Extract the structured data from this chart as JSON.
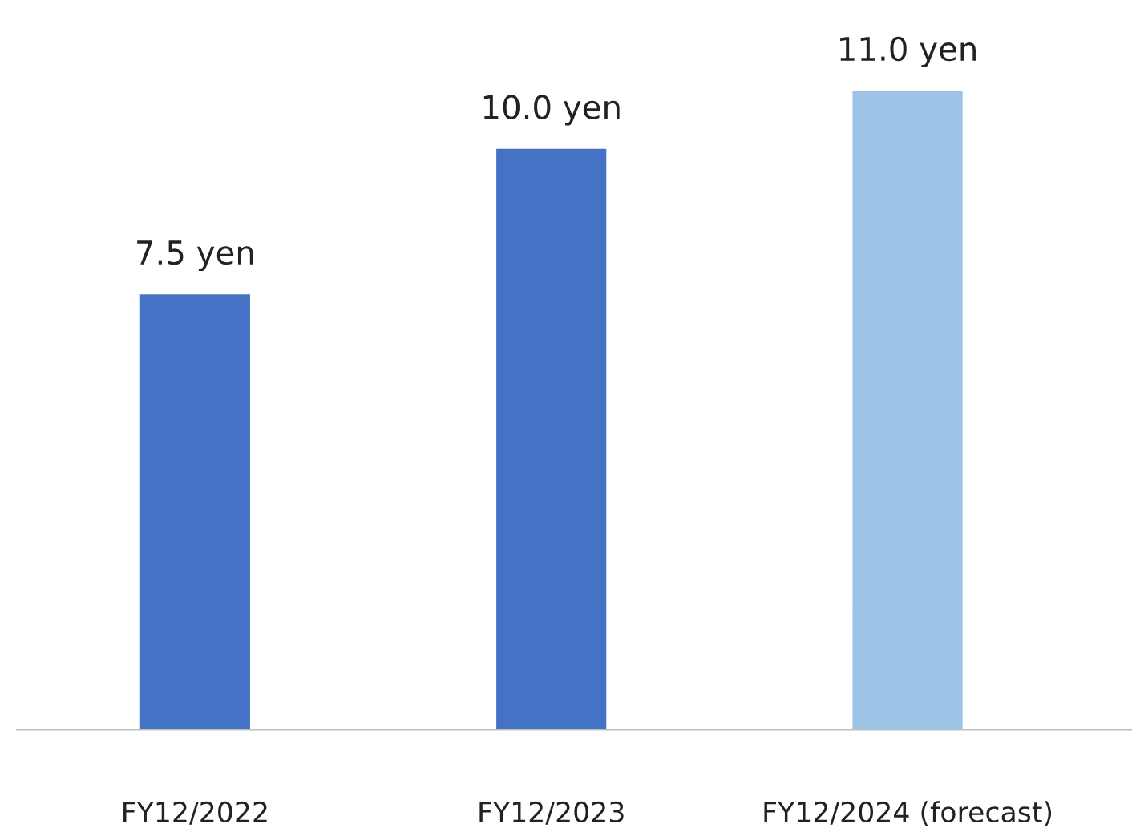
{
  "chart_data": {
    "type": "bar",
    "categories": [
      "FY12/2022",
      "FY12/2023",
      "FY12/2024 (forecast)"
    ],
    "values": [
      7.5,
      10.0,
      11.0
    ],
    "colors": [
      "#4472c4",
      "#4472c4",
      "#9dc3e6"
    ],
    "value_labels": [
      "7.5 yen",
      "10.0 yen",
      "11.0 yen"
    ],
    "grid": false,
    "legend": false
  }
}
